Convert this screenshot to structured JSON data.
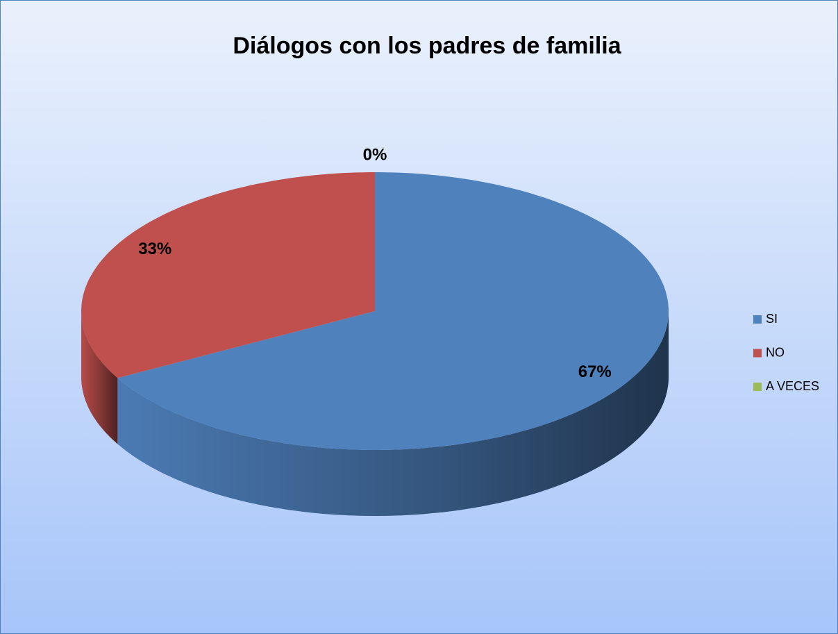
{
  "chart_data": {
    "type": "pie",
    "title": "Diálogos con los padres de familia",
    "categories": [
      "SI",
      "NO",
      "A VECES"
    ],
    "values": [
      67,
      33,
      0
    ],
    "value_labels": [
      "67%",
      "33%",
      "0%"
    ],
    "colors": [
      "#4f81bd",
      "#c0504d",
      "#9bbb59"
    ],
    "legend": "right"
  }
}
